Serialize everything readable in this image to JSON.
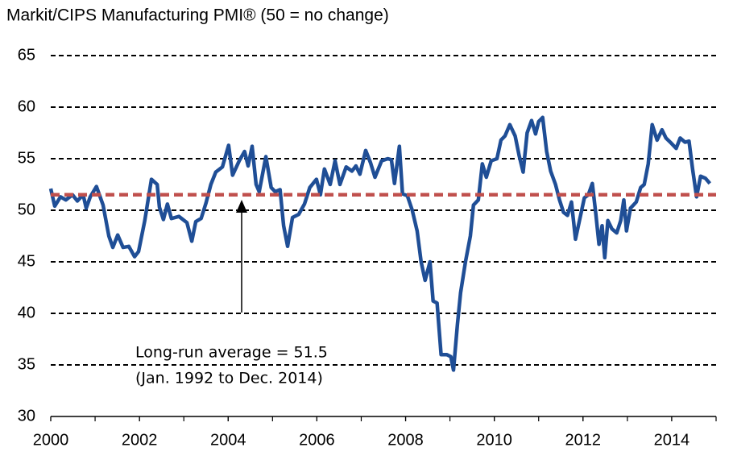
{
  "chart_data": {
    "type": "line",
    "title": "Markit/CIPS Manufacturing PMI® (50 = no change)",
    "annotation": [
      "Long-run average = 51.5",
      "(Jan. 1992 to Dec. 2014)"
    ],
    "reference_line": {
      "value": 51.5,
      "color": "#c0504d"
    },
    "xlim": [
      2000,
      2015
    ],
    "xticks": [
      2000,
      2002,
      2004,
      2006,
      2008,
      2010,
      2012,
      2014
    ],
    "ylim": [
      30,
      65
    ],
    "yticks": [
      30,
      35,
      40,
      45,
      50,
      55,
      60,
      65
    ],
    "grid": true,
    "x": [
      2000.0,
      2000.09,
      2000.22,
      2000.34,
      2000.49,
      2000.6,
      2000.73,
      2000.8,
      2000.89,
      2001.03,
      2001.18,
      2001.31,
      2001.4,
      2001.51,
      2001.63,
      2001.76,
      2001.89,
      2001.98,
      2002.12,
      2002.27,
      2002.4,
      2002.45,
      2002.54,
      2002.63,
      2002.72,
      2002.89,
      2003.07,
      2003.18,
      2003.27,
      2003.39,
      2003.5,
      2003.61,
      2003.72,
      2003.87,
      2004.01,
      2004.1,
      2004.25,
      2004.37,
      2004.45,
      2004.54,
      2004.63,
      2004.7,
      2004.85,
      2004.97,
      2005.06,
      2005.17,
      2005.25,
      2005.34,
      2005.45,
      2005.59,
      2005.72,
      2005.84,
      2005.99,
      2006.08,
      2006.17,
      2006.3,
      2006.41,
      2006.52,
      2006.66,
      2006.79,
      2006.88,
      2006.97,
      2007.1,
      2007.21,
      2007.31,
      2007.46,
      2007.6,
      2007.68,
      2007.75,
      2007.86,
      2007.93,
      2008.04,
      2008.15,
      2008.26,
      2008.35,
      2008.44,
      2008.55,
      2008.62,
      2008.71,
      2008.8,
      2008.93,
      2009.02,
      2009.08,
      2009.17,
      2009.24,
      2009.35,
      2009.46,
      2009.53,
      2009.64,
      2009.73,
      2009.82,
      2009.93,
      2010.06,
      2010.15,
      2010.24,
      2010.35,
      2010.47,
      2010.56,
      2010.65,
      2010.74,
      2010.84,
      2010.93,
      2011.0,
      2011.09,
      2011.18,
      2011.27,
      2011.38,
      2011.47,
      2011.56,
      2011.65,
      2011.74,
      2011.83,
      2011.92,
      2012.03,
      2012.12,
      2012.21,
      2012.29,
      2012.36,
      2012.43,
      2012.49,
      2012.56,
      2012.65,
      2012.76,
      2012.85,
      2012.92,
      2012.98,
      2013.07,
      2013.2,
      2013.3,
      2013.38,
      2013.47,
      2013.56,
      2013.67,
      2013.78,
      2013.87,
      2013.99,
      2014.1,
      2014.19,
      2014.3,
      2014.39,
      2014.47,
      2014.56,
      2014.65,
      2014.76,
      2014.86
    ],
    "series": [
      {
        "color": "#1f4e96",
        "values": [
          52.1,
          50.4,
          51.3,
          51.0,
          51.5,
          50.9,
          51.5,
          50.2,
          51.3,
          52.3,
          50.5,
          47.5,
          46.4,
          47.6,
          46.4,
          46.5,
          45.5,
          46.0,
          49.0,
          53.0,
          52.5,
          50.3,
          49.1,
          50.6,
          49.2,
          49.4,
          48.8,
          47.0,
          48.9,
          49.2,
          50.7,
          52.5,
          53.7,
          54.2,
          56.3,
          53.4,
          54.8,
          55.7,
          54.3,
          56.2,
          52.5,
          51.8,
          55.2,
          52.2,
          51.8,
          52.0,
          48.5,
          46.5,
          49.3,
          49.6,
          50.6,
          52.2,
          53.0,
          51.5,
          54.0,
          52.5,
          54.8,
          52.5,
          54.2,
          53.8,
          54.3,
          53.5,
          55.8,
          54.6,
          53.2,
          54.8,
          55.0,
          54.9,
          52.6,
          56.2,
          51.6,
          51.4,
          50.0,
          48.0,
          45.0,
          43.2,
          45.0,
          41.2,
          41.0,
          36.0,
          36.0,
          35.8,
          34.5,
          39.0,
          42.0,
          45.0,
          47.5,
          50.5,
          51.0,
          54.5,
          53.2,
          54.8,
          55.0,
          56.8,
          57.2,
          58.3,
          57.2,
          55.3,
          53.7,
          57.5,
          58.7,
          57.4,
          58.6,
          59.0,
          55.7,
          53.8,
          52.5,
          51.0,
          49.8,
          49.5,
          50.8,
          47.2,
          49.0,
          51.2,
          51.5,
          52.6,
          49.6,
          46.7,
          48.5,
          45.4,
          49.0,
          48.2,
          47.8,
          49.0,
          51.0,
          48.0,
          50.2,
          50.8,
          52.2,
          52.5,
          54.5,
          58.3,
          56.8,
          57.8,
          57.0,
          56.5,
          56.0,
          57.0,
          56.6,
          56.7,
          54.0,
          51.3,
          53.3,
          53.1,
          52.6
        ]
      }
    ]
  }
}
